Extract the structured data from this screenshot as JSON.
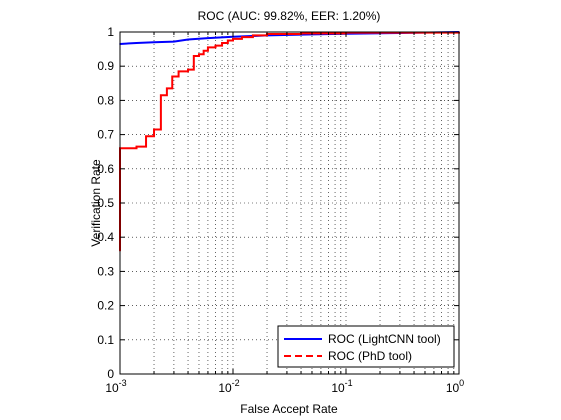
{
  "chart_data": {
    "type": "line",
    "title": "ROC (AUC: 99.82%, EER: 1.20%)",
    "xlabel": "False Accept Rate",
    "ylabel": "Verification Rate",
    "xscale": "log",
    "xlim": [
      0.001,
      1
    ],
    "ylim": [
      0,
      1
    ],
    "grid": true,
    "legend_position": "bottom-right",
    "x_ticks": [
      {
        "base": "10",
        "exp": "-3",
        "value": 0.001
      },
      {
        "base": "10",
        "exp": "-2",
        "value": 0.01
      },
      {
        "base": "10",
        "exp": "-1",
        "value": 0.1
      },
      {
        "base": "10",
        "exp": "0",
        "value": 1
      }
    ],
    "y_ticks": [
      "0",
      "0.1",
      "0.2",
      "0.3",
      "0.4",
      "0.5",
      "0.6",
      "0.7",
      "0.8",
      "0.9",
      "1"
    ],
    "series": [
      {
        "name": "ROC (LightCNN tool)",
        "color": "#0000ff",
        "dash": "solid",
        "points": [
          [
            0.001,
            0.965
          ],
          [
            0.0014,
            0.968
          ],
          [
            0.002,
            0.97
          ],
          [
            0.003,
            0.972
          ],
          [
            0.004,
            0.978
          ],
          [
            0.006,
            0.982
          ],
          [
            0.01,
            0.986
          ],
          [
            0.02,
            0.99
          ],
          [
            0.05,
            0.993
          ],
          [
            0.1,
            0.995
          ],
          [
            0.3,
            0.997
          ],
          [
            1,
            1.0
          ]
        ]
      },
      {
        "name": "ROC (PhD tool)",
        "color": "#ff0000",
        "dash": "dashed",
        "step": true,
        "points": [
          [
            0.001,
            0.36
          ],
          [
            0.001,
            0.66
          ],
          [
            0.0014,
            0.665
          ],
          [
            0.0017,
            0.695
          ],
          [
            0.002,
            0.715
          ],
          [
            0.0023,
            0.815
          ],
          [
            0.0026,
            0.835
          ],
          [
            0.0029,
            0.87
          ],
          [
            0.0033,
            0.885
          ],
          [
            0.004,
            0.89
          ],
          [
            0.0045,
            0.93
          ],
          [
            0.005,
            0.935
          ],
          [
            0.0055,
            0.945
          ],
          [
            0.006,
            0.955
          ],
          [
            0.007,
            0.96
          ],
          [
            0.008,
            0.968
          ],
          [
            0.009,
            0.975
          ],
          [
            0.01,
            0.98
          ],
          [
            0.012,
            0.985
          ],
          [
            0.015,
            0.99
          ],
          [
            0.02,
            0.994
          ],
          [
            0.04,
            0.996
          ],
          [
            0.1,
            0.998
          ],
          [
            1,
            1.0
          ]
        ]
      }
    ]
  }
}
